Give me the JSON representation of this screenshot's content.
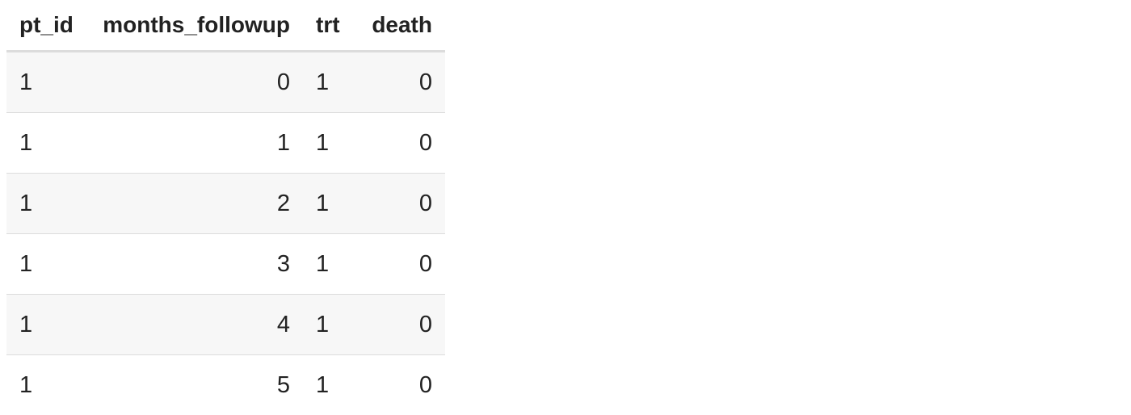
{
  "table": {
    "headers": [
      "pt_id",
      "months_followup",
      "trt",
      "death"
    ],
    "rows": [
      [
        "1",
        "0",
        "1",
        "0"
      ],
      [
        "1",
        "1",
        "1",
        "0"
      ],
      [
        "1",
        "2",
        "1",
        "0"
      ],
      [
        "1",
        "3",
        "1",
        "0"
      ],
      [
        "1",
        "4",
        "1",
        "0"
      ],
      [
        "1",
        "5",
        "1",
        "0"
      ]
    ]
  }
}
